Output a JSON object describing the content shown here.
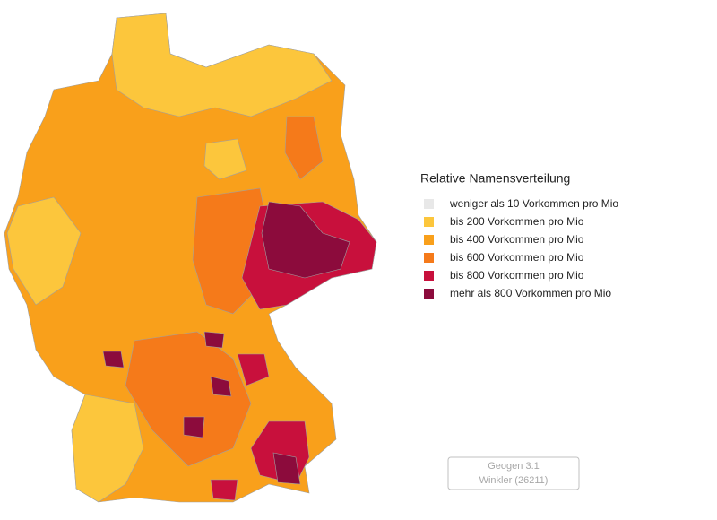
{
  "legend": {
    "title": "Relative Namensverteilung",
    "items": [
      {
        "label": "weniger als 10 Vorkommen pro Mio",
        "color": "#e8e8e8"
      },
      {
        "label": "bis 200 Vorkommen pro Mio",
        "color": "#fcc63c"
      },
      {
        "label": "bis 400 Vorkommen pro Mio",
        "color": "#f9a01b"
      },
      {
        "label": "bis 600 Vorkommen pro Mio",
        "color": "#f57a1a"
      },
      {
        "label": "bis 800 Vorkommen pro Mio",
        "color": "#c8103c"
      },
      {
        "label": "mehr als 800 Vorkommen pro Mio",
        "color": "#8c0b3c"
      }
    ]
  },
  "footer": {
    "line1": "Geogen 3.1",
    "line2": "Winkler (26211)"
  }
}
